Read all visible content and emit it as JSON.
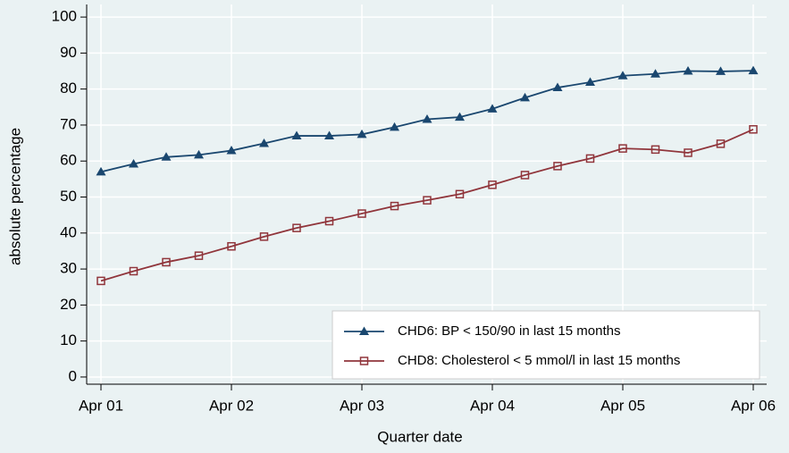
{
  "chart_data": {
    "type": "line",
    "xlabel": "Quarter date",
    "ylabel": "absolute percentage",
    "categories": [
      "Apr 01",
      null,
      null,
      null,
      "Apr 02",
      null,
      null,
      null,
      "Apr 03",
      null,
      null,
      null,
      "Apr 04",
      null,
      null,
      null,
      "Apr 05",
      null,
      null,
      null,
      "Apr 06"
    ],
    "series": [
      {
        "name": "CHD6: BP < 150/90 in last 15 months",
        "color": "#1a476f",
        "marker": "triangle",
        "values": [
          57,
          59.2,
          61.1,
          61.7,
          62.9,
          64.9,
          67,
          67,
          67.4,
          69.4,
          71.6,
          72.2,
          74.5,
          77.6,
          80.4,
          81.9,
          83.7,
          84.2,
          85,
          84.9,
          85.1
        ]
      },
      {
        "name": "CHD8: Cholesterol < 5 mmol/l in last 15 months",
        "color": "#90353b",
        "marker": "square",
        "values": [
          26.7,
          29.4,
          31.9,
          33.7,
          36.3,
          39.0,
          41.4,
          43.3,
          45.4,
          47.5,
          49.1,
          50.8,
          53.4,
          56.1,
          58.6,
          60.7,
          63.5,
          63.2,
          62.3,
          64.8,
          68.8
        ]
      }
    ],
    "ylim": [
      -2,
      103.5
    ],
    "yticks": [
      0,
      10,
      20,
      30,
      40,
      50,
      60,
      70,
      80,
      90,
      100
    ],
    "grid": true,
    "legend_position": "lower right"
  }
}
